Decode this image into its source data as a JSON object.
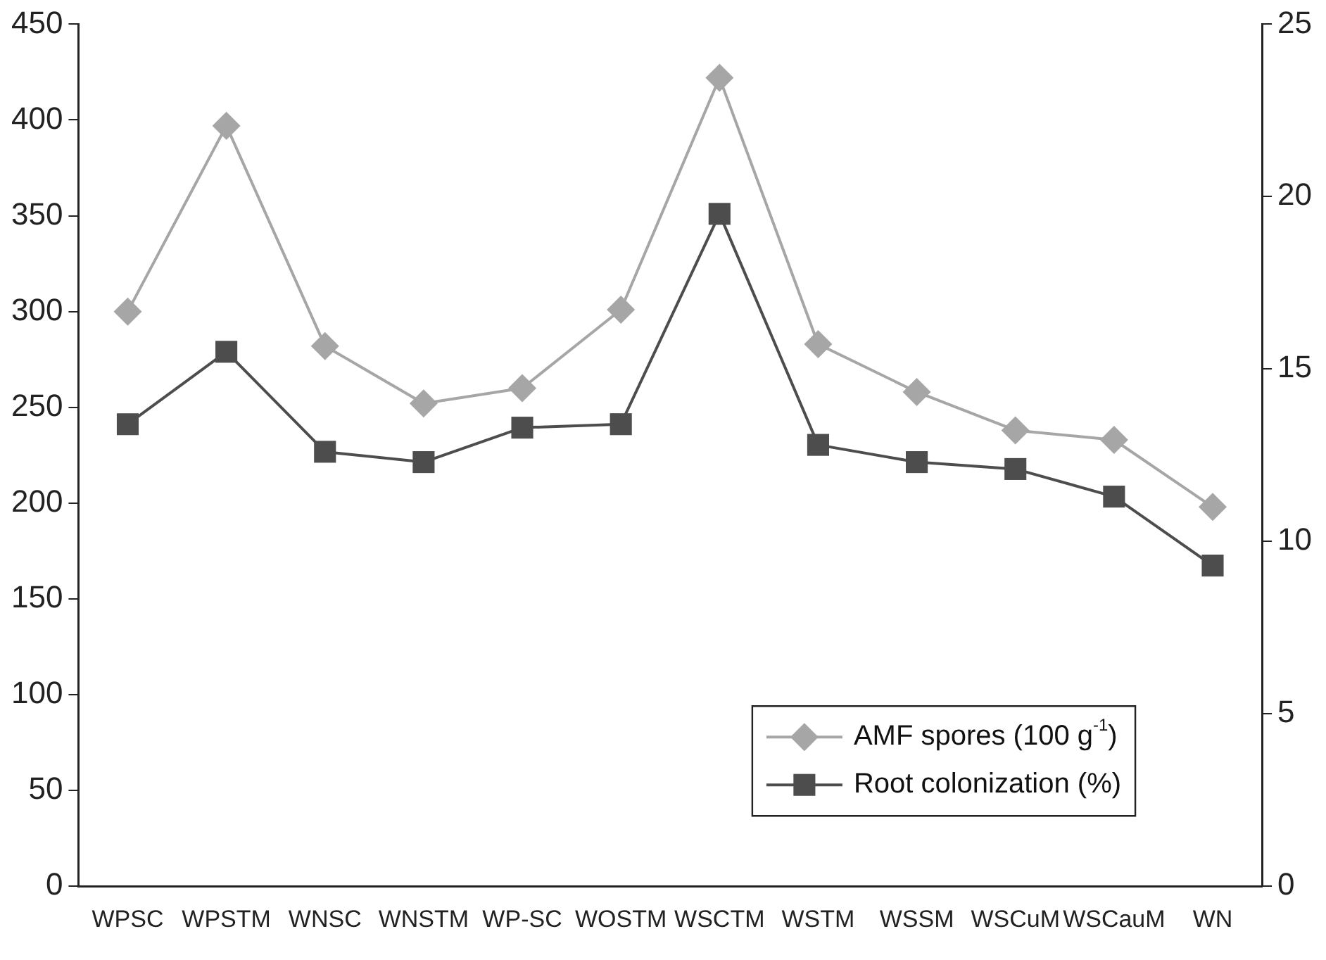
{
  "chart_data": {
    "type": "line",
    "categories": [
      "WPSC",
      "WPSTM",
      "WNSC",
      "WNSTM",
      "WP-SC",
      "WOSTM",
      "WSCTM",
      "WSTM",
      "WSSM",
      "WSCuM",
      "WSCauM",
      "WN"
    ],
    "series": [
      {
        "name": "AMF spores (100 g$^{-1}$)",
        "color": "#a6a6a6",
        "marker": "diamond",
        "values": [
          300,
          397,
          282,
          252,
          260,
          301,
          422,
          283,
          258,
          238,
          233,
          198
        ]
      },
      {
        "name": "Root colonization (%)",
        "color": "#4d4d4d",
        "marker": "square",
        "axis": "y2",
        "values": [
          13.4,
          15.5,
          12.6,
          12.3,
          13.3,
          13.4,
          19.5,
          12.8,
          12.3,
          12.1,
          11.3,
          9.3
        ]
      }
    ],
    "ylim": [
      0,
      450
    ],
    "yticks": [
      0,
      50,
      100,
      150,
      200,
      250,
      300,
      350,
      400,
      450
    ],
    "y2lim": [
      0,
      25
    ],
    "y2ticks": [
      0,
      5,
      10,
      15,
      20,
      25
    ],
    "grid": false,
    "legend": "bottom right"
  }
}
